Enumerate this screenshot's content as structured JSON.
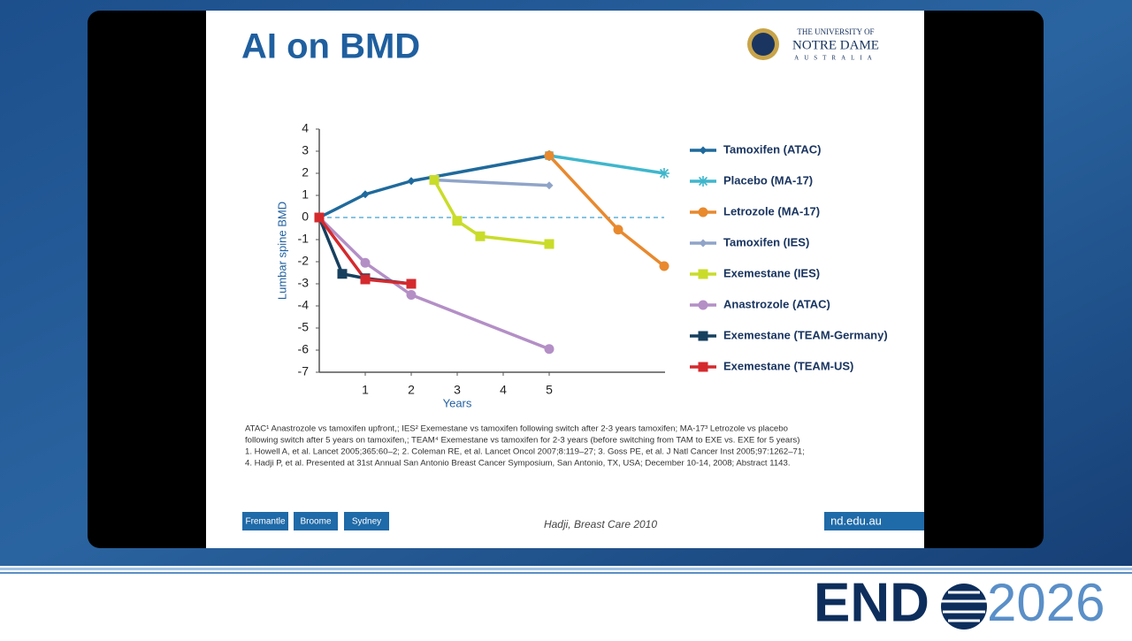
{
  "slide": {
    "title": "AI on BMD",
    "logo": {
      "line1": "THE UNIVERSITY OF",
      "line2": "NOTRE DAME",
      "line3": "AUSTRALIA"
    },
    "footnotes": [
      "ATAC¹ Anastrozole vs tamoxifen upfront,; IES²     Exemestane vs tamoxifen following switch after 2-3 years tamoxifen; MA-17³ Letrozole vs placebo",
      "following switch after 5 years on tamoxifen,; TEAM⁴  Exemestane vs tamoxifen for 2-3 years  (before switching from TAM to EXE vs. EXE for 5 years)",
      "1. Howell A, et al. Lancet 2005;365:60–2; 2. Coleman RE, et al. Lancet Oncol 2007;8:119–27; 3. Goss PE, et al. J Natl Cancer Inst 2005;97:1262–71;",
      "4. Hadji P, et al. Presented at 31st Annual San Antonio Breast Cancer Symposium, San Antonio, TX, USA; December 10-14, 2008; Abstract 1143."
    ],
    "buttons": [
      "Fremantle",
      "Broome",
      "Sydney"
    ],
    "source": "Hadji, Breast Care 2010",
    "website": "nd.edu.au"
  },
  "event_logo": {
    "left": "END",
    "right": "2026"
  },
  "chart_data": {
    "type": "line",
    "x_label": "Years",
    "y_label": "Lumbar spine BMD",
    "xlim": [
      0,
      7.5
    ],
    "ylim": [
      -7,
      4
    ],
    "xticks": [
      1,
      2,
      3,
      4,
      5
    ],
    "yticks": [
      4,
      3,
      2,
      1,
      0,
      -1,
      -2,
      -3,
      -4,
      -5,
      -6,
      -7
    ],
    "reference_line": 0,
    "series": [
      {
        "name": "Tamoxifen (ATAC)",
        "color": "#1f6a9c",
        "marker": "diamond",
        "x": [
          0,
          1,
          2,
          5
        ],
        "values": [
          0,
          1.05,
          1.65,
          2.8
        ]
      },
      {
        "name": "Placebo (MA-17)",
        "color": "#3fb6cc",
        "marker": "asterisk",
        "x": [
          5,
          7.5
        ],
        "values": [
          2.8,
          2.0
        ]
      },
      {
        "name": "Letrozole (MA-17)",
        "color": "#e8892e",
        "marker": "circle",
        "x": [
          5,
          6.5,
          7.5
        ],
        "values": [
          2.8,
          -0.55,
          -2.2
        ]
      },
      {
        "name": "Tamoxifen (IES)",
        "color": "#8fa4c8",
        "marker": "diamond",
        "x": [
          2.5,
          5
        ],
        "values": [
          1.7,
          1.45
        ]
      },
      {
        "name": "Exemestane (IES)",
        "color": "#c9dc2a",
        "marker": "square",
        "x": [
          2.5,
          3,
          3.5,
          5
        ],
        "values": [
          1.7,
          -0.15,
          -0.85,
          -1.2
        ]
      },
      {
        "name": "Anastrozole (ATAC)",
        "color": "#b48fc6",
        "marker": "circle",
        "x": [
          0,
          1,
          2,
          5
        ],
        "values": [
          0,
          -2.05,
          -3.5,
          -5.95
        ]
      },
      {
        "name": "Exemestane (TEAM-Germany)",
        "color": "#17405f",
        "marker": "square",
        "x": [
          0,
          0.5,
          1,
          2
        ],
        "values": [
          0,
          -2.55,
          -2.75,
          -3
        ]
      },
      {
        "name": "Exemestane (TEAM-US)",
        "color": "#d42a2e",
        "marker": "square",
        "x": [
          0,
          1,
          2
        ],
        "values": [
          0,
          -2.8,
          -3
        ]
      }
    ]
  }
}
